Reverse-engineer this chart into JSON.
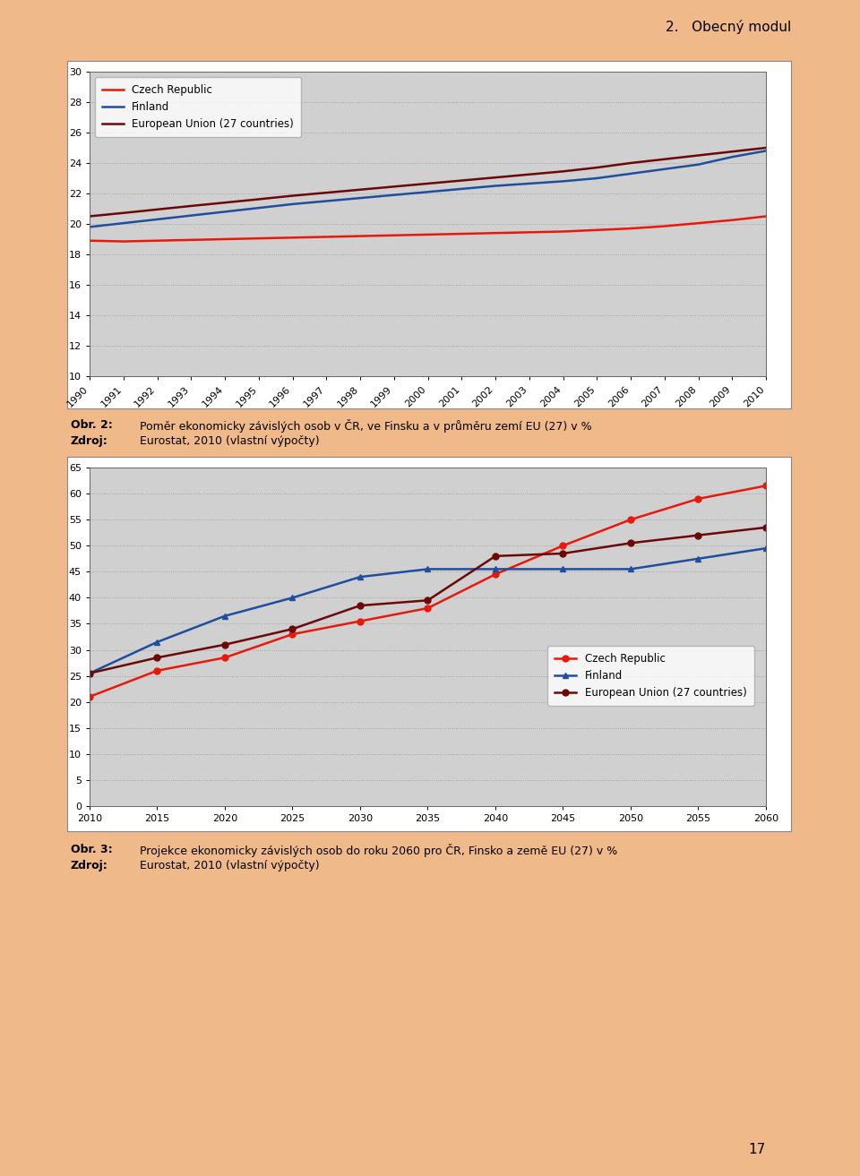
{
  "page_bg": "#f0b98a",
  "chart_outer_bg": "#ffffff",
  "chart_inner_bg": "#d0d0d0",
  "header_text": "2.   Obecný modul",
  "header_fontsize": 11,
  "header_line_color": "#c8a070",
  "chart1": {
    "years": [
      1990,
      1991,
      1992,
      1993,
      1994,
      1995,
      1996,
      1997,
      1998,
      1999,
      2000,
      2001,
      2002,
      2003,
      2004,
      2005,
      2006,
      2007,
      2008,
      2009,
      2010
    ],
    "czech": [
      18.9,
      18.85,
      18.9,
      18.95,
      19.0,
      19.05,
      19.1,
      19.15,
      19.2,
      19.25,
      19.3,
      19.35,
      19.4,
      19.45,
      19.5,
      19.6,
      19.7,
      19.85,
      20.05,
      20.25,
      20.5
    ],
    "finland": [
      19.8,
      20.05,
      20.3,
      20.55,
      20.8,
      21.05,
      21.3,
      21.5,
      21.7,
      21.9,
      22.1,
      22.3,
      22.5,
      22.65,
      22.8,
      23.0,
      23.3,
      23.6,
      23.9,
      24.4,
      24.8
    ],
    "eu27": [
      20.5,
      20.72,
      20.95,
      21.18,
      21.4,
      21.62,
      21.85,
      22.05,
      22.25,
      22.45,
      22.65,
      22.85,
      23.05,
      23.25,
      23.45,
      23.7,
      24.0,
      24.25,
      24.5,
      24.75,
      25.0
    ],
    "ylim": [
      10,
      30
    ],
    "yticks": [
      10,
      12,
      14,
      16,
      18,
      20,
      22,
      24,
      26,
      28,
      30
    ],
    "czech_color": "#e8190a",
    "finland_color": "#1f4e9e",
    "eu27_color": "#6b0808",
    "linewidth": 1.8,
    "legend_labels": [
      "Czech Republic",
      "Finland",
      "European Union (27 countries)"
    ]
  },
  "chart2": {
    "years": [
      2010,
      2015,
      2020,
      2025,
      2030,
      2035,
      2040,
      2045,
      2050,
      2055,
      2060
    ],
    "czech": [
      21.0,
      26.0,
      28.5,
      33.0,
      35.5,
      38.0,
      44.5,
      50.0,
      55.0,
      59.0,
      61.5
    ],
    "finland": [
      25.5,
      31.5,
      36.5,
      40.0,
      44.0,
      45.5,
      45.5,
      45.5,
      45.5,
      47.5,
      49.5
    ],
    "eu27": [
      25.5,
      28.5,
      31.0,
      34.0,
      38.5,
      39.5,
      48.0,
      48.5,
      50.5,
      52.0,
      53.5
    ],
    "ylim": [
      0,
      65
    ],
    "yticks": [
      0,
      5,
      10,
      15,
      20,
      25,
      30,
      35,
      40,
      45,
      50,
      55,
      60,
      65
    ],
    "czech_color": "#e8190a",
    "finland_color": "#1f4e9e",
    "eu27_color": "#6b0808",
    "linewidth": 1.8,
    "marker_czech": "o",
    "marker_finland": "^",
    "marker_eu27": "o",
    "legend_labels": [
      "Czech Republic",
      "Finland",
      "European Union (27 countries)"
    ]
  },
  "caption1_bold": "Obr. 2:",
  "caption1_normal": "Poměr ekonomicky závislých osob v ČR, ve Finsku a v průměru zemí EU (27) v %",
  "caption1_src_bold": "Zdroj:",
  "caption1_src_normal": "Eurostat, 2010 (vlastní výpočty)",
  "caption2_bold": "Obr. 3:",
  "caption2_normal": "Projekce ekonomicky závislých osob do roku 2060 pro ČR, Finsko a země EU (27) v %",
  "caption2_src_bold": "Zdroj:",
  "caption2_src_normal": "Eurostat, 2010 (vlastní výpočty)",
  "page_number": "17",
  "bottom_bar_color": "#ffffff",
  "grid_color": "#999999",
  "grid_style": "dotted",
  "tick_fontsize": 8,
  "caption_fontsize": 9,
  "caption_bold_fontsize": 9
}
